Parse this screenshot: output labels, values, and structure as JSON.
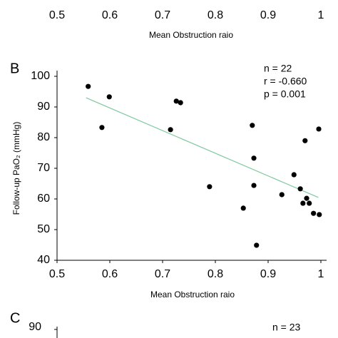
{
  "chart_data": [
    {
      "type": "axis",
      "xlabel": "Mean Obstruction raio",
      "xlim": [
        0.5,
        1
      ],
      "xticks": [
        0.5,
        0.6,
        0.7,
        0.8,
        0.9,
        1
      ]
    },
    {
      "type": "scatter",
      "label": "B",
      "xlabel": "Mean Obstruction raio",
      "ylabel": "Follow-up PaO₂ (mmHg)",
      "xlim": [
        0.5,
        1
      ],
      "xticks": [
        0.5,
        0.6,
        0.7,
        0.8,
        0.9,
        1
      ],
      "ylim": [
        40,
        100
      ],
      "yticks": [
        40,
        50,
        60,
        70,
        80,
        90,
        100
      ],
      "color": "#000000",
      "x": [
        0.559,
        0.599,
        0.585,
        0.726,
        0.734,
        0.715,
        0.789,
        0.87,
        0.873,
        0.873,
        0.853,
        0.878,
        0.926,
        0.949,
        0.961,
        0.97,
        0.996,
        0.973,
        0.978,
        0.966,
        0.986,
        0.997
      ],
      "values": [
        96.7,
        93.3,
        83.3,
        91.9,
        91.4,
        82.6,
        64,
        84,
        73.3,
        64.4,
        57,
        44.9,
        61.4,
        67.9,
        63.3,
        79,
        82.8,
        60.2,
        58.6,
        58.6,
        55.3,
        54.9
      ],
      "fit": {
        "color": "#7fc9a0",
        "x": [
          0.555,
          0.995
        ],
        "y": [
          93,
          60.5
        ]
      },
      "annotations": [
        "n = 22",
        "r = -0.660",
        "p = 0.001"
      ]
    },
    {
      "type": "axis",
      "label": "C",
      "ylim": [
        40,
        100
      ],
      "yticks": [
        90
      ],
      "annotations": [
        "n = 23"
      ]
    }
  ]
}
